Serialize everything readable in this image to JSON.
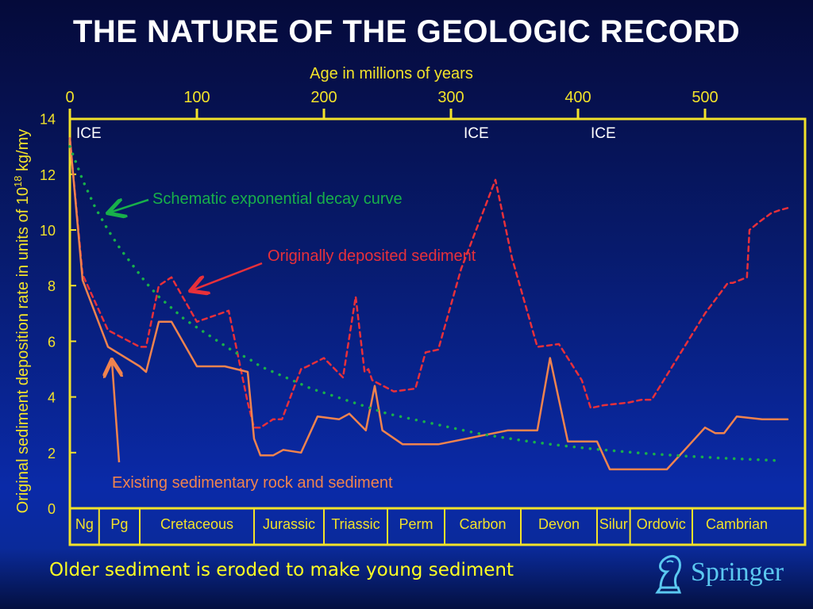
{
  "slide": {
    "title": "THE NATURE OF THE GEOLOGIC RECORD",
    "note": "Older sediment is eroded to make young sediment",
    "brand": "Springer"
  },
  "colors": {
    "axis": "#f2e22a",
    "original": "#e8303a",
    "existing": "#f0834e",
    "decay": "#18b04a",
    "text_white": "#ffffff"
  },
  "chart_data": {
    "type": "line",
    "xlabel": "Age in millions of years",
    "ylabel": "Original sediment deposition rate in units of 10",
    "ylabel_sup": "18",
    "ylabel_unit": " kg/my",
    "xlim": [
      0,
      560
    ],
    "ylim": [
      0,
      14
    ],
    "xticks": [
      0,
      100,
      200,
      300,
      400,
      500
    ],
    "yticks": [
      0,
      2,
      4,
      6,
      8,
      10,
      12,
      14
    ],
    "ice_labels": [
      {
        "text": "ICE",
        "x": 5
      },
      {
        "text": "ICE",
        "x": 310
      },
      {
        "text": "ICE",
        "x": 410
      }
    ],
    "periods": [
      {
        "name": "Ng",
        "start": 0,
        "end": 23
      },
      {
        "name": "Pg",
        "start": 23,
        "end": 55
      },
      {
        "name": "Cretaceous",
        "start": 55,
        "end": 145
      },
      {
        "name": "Jurassic",
        "start": 145,
        "end": 200
      },
      {
        "name": "Triassic",
        "start": 200,
        "end": 250
      },
      {
        "name": "Perm",
        "start": 250,
        "end": 295
      },
      {
        "name": "Carbon",
        "start": 295,
        "end": 355
      },
      {
        "name": "Devon",
        "start": 355,
        "end": 415
      },
      {
        "name": "Silur",
        "start": 415,
        "end": 441
      },
      {
        "name": "Ordovic",
        "start": 441,
        "end": 490
      },
      {
        "name": "Cambrian",
        "start": 490,
        "end": 560
      }
    ],
    "series": [
      {
        "name": "Originally deposited  sediment",
        "style": "dashed",
        "x": [
          0,
          10,
          30,
          55,
          60,
          70,
          80,
          100,
          125,
          140,
          145,
          150,
          160,
          167,
          182,
          187,
          200,
          215,
          225,
          232,
          235,
          238,
          255,
          272,
          280,
          290,
          308,
          335,
          348,
          368,
          385,
          403,
          410,
          420,
          440,
          450,
          458,
          500,
          518,
          522,
          533,
          535,
          543,
          552,
          558,
          566
        ],
        "y": [
          13.3,
          8.4,
          6.4,
          5.8,
          5.8,
          8.0,
          8.3,
          6.7,
          7.1,
          3.8,
          2.9,
          2.9,
          3.2,
          3.2,
          5.0,
          5.1,
          5.4,
          4.7,
          7.6,
          4.9,
          5.0,
          4.6,
          4.2,
          4.3,
          5.6,
          5.7,
          8.6,
          11.8,
          9.0,
          5.8,
          5.9,
          4.6,
          3.6,
          3.7,
          3.8,
          3.9,
          3.9,
          7.0,
          8.1,
          8.1,
          8.3,
          10.0,
          10.3,
          10.6,
          10.7,
          10.8
        ]
      },
      {
        "name": "Existing sedimentary rock and sediment",
        "style": "solid",
        "x": [
          0,
          10,
          30,
          55,
          60,
          70,
          80,
          100,
          122,
          140,
          145,
          150,
          160,
          168,
          182,
          195,
          212,
          220,
          233,
          240,
          246,
          262,
          290,
          345,
          368,
          378,
          392,
          415,
          425,
          460,
          470,
          490,
          500,
          508,
          515,
          525,
          545,
          565
        ],
        "y": [
          13.3,
          8.2,
          5.8,
          5.1,
          4.9,
          6.7,
          6.7,
          5.1,
          5.1,
          4.9,
          2.5,
          1.9,
          1.9,
          2.1,
          2.0,
          3.3,
          3.2,
          3.4,
          2.8,
          4.4,
          2.8,
          2.3,
          2.3,
          2.8,
          2.8,
          5.4,
          2.4,
          2.4,
          1.4,
          1.4,
          1.4,
          2.4,
          2.9,
          2.7,
          2.7,
          3.3,
          3.2,
          3.2
        ]
      },
      {
        "name": "Schematic exponential decay curve",
        "style": "dotted",
        "x": [
          0,
          10,
          20,
          30,
          40,
          50,
          60,
          70,
          80,
          90,
          100,
          110,
          120,
          130,
          140,
          150,
          160,
          170,
          180,
          190,
          200,
          210,
          220,
          230,
          240,
          250,
          260,
          270,
          280,
          290,
          300,
          310,
          320,
          330,
          340,
          350,
          360,
          370,
          380,
          390,
          400,
          410,
          420,
          430,
          440,
          450,
          460,
          470,
          480,
          490,
          500,
          510,
          520,
          530,
          540,
          550,
          560
        ],
        "y": [
          13.0,
          11.8,
          10.8,
          10.0,
          9.3,
          8.7,
          8.1,
          7.6,
          7.2,
          6.8,
          6.5,
          6.2,
          5.9,
          5.6,
          5.4,
          5.1,
          4.9,
          4.7,
          4.5,
          4.3,
          4.15,
          4.0,
          3.85,
          3.7,
          3.55,
          3.4,
          3.3,
          3.2,
          3.1,
          3.0,
          2.9,
          2.8,
          2.7,
          2.62,
          2.55,
          2.48,
          2.41,
          2.35,
          2.29,
          2.24,
          2.19,
          2.14,
          2.1,
          2.06,
          2.02,
          1.98,
          1.95,
          1.92,
          1.89,
          1.86,
          1.84,
          1.81,
          1.79,
          1.77,
          1.75,
          1.73,
          1.71
        ]
      }
    ],
    "annotations": [
      {
        "text": "Schematic exponential decay curve",
        "color": "decay",
        "arrow_to": [
          28,
          10.5
        ]
      },
      {
        "text": "Originally deposited  sediment",
        "color": "original",
        "arrow_to": [
          78,
          7.8
        ]
      },
      {
        "text": "Existing sedimentary rock and sediment",
        "color": "existing",
        "arrow_to": [
          40,
          5.4
        ]
      }
    ]
  }
}
